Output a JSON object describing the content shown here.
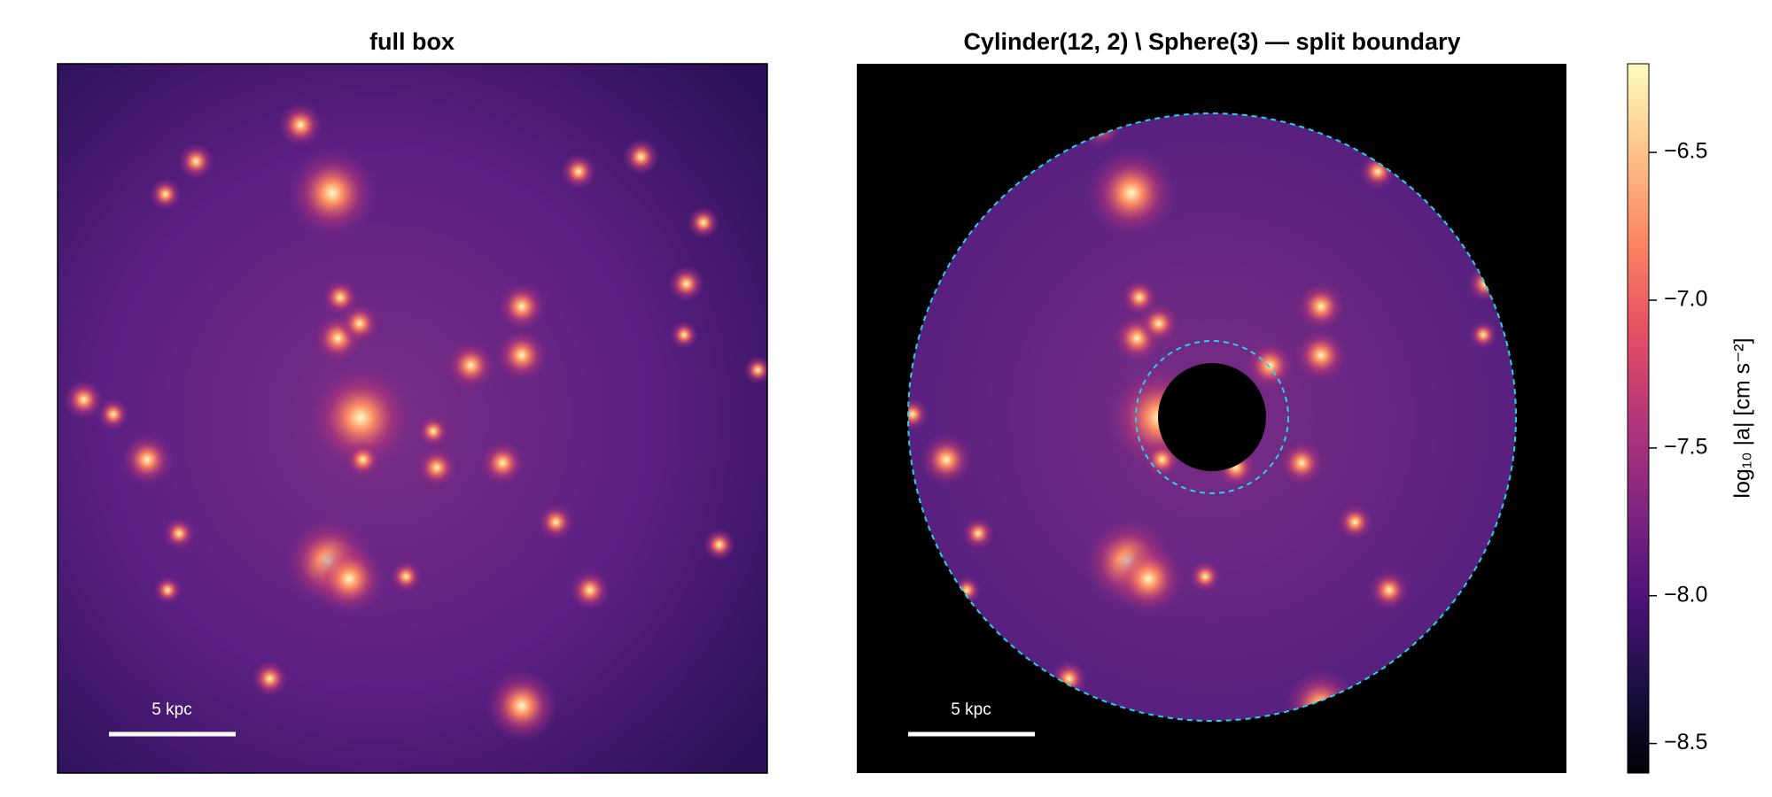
{
  "chart_data": {
    "type": "heatmap",
    "colormap": "magma",
    "panels": [
      {
        "title": "full box",
        "scale_bar_label": "5 kpc"
      },
      {
        "title": "Cylinder(12, 2) \\ Sphere(3) — split boundary",
        "scale_bar_label": "5 kpc"
      }
    ],
    "colorbar": {
      "label": "log₁₀ |a|  [cm s⁻²]",
      "clim": [
        -8.6,
        -6.2
      ],
      "ticks": [
        {
          "value": -6.5,
          "label": "−6.5"
        },
        {
          "value": -7.0,
          "label": "−7.0"
        },
        {
          "value": -7.5,
          "label": "−7.5"
        },
        {
          "value": -8.0,
          "label": "−8.0"
        },
        {
          "value": -8.5,
          "label": "−8.5"
        }
      ]
    }
  }
}
